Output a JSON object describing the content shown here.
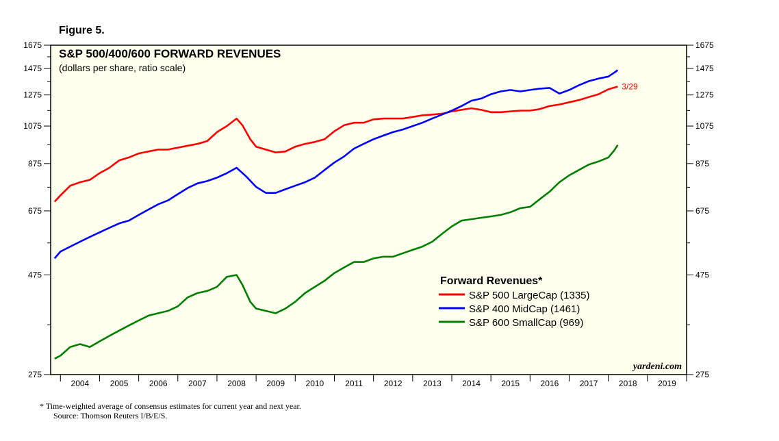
{
  "figure_label": "Figure 5.",
  "footnote": {
    "line1": "*   Time-weighted average of consensus estimates for current year and next year.",
    "line2": "Source: Thomson Reuters I/B/E/S."
  },
  "watermark": "yardeni.com",
  "colors": {
    "plot_background": "#ffffee",
    "large_cap": "#ff0000",
    "mid_cap": "#0000ff",
    "small_cap": "#008000"
  },
  "chart_data": {
    "type": "line",
    "title": "S&P 500/400/600 FORWARD REVENUES",
    "subtitle": "(dollars per share, ratio scale)",
    "y_scale": "log",
    "ylim": [
      275,
      1675
    ],
    "y_ticks": [
      275,
      475,
      675,
      875,
      1075,
      1275,
      1475,
      1675
    ],
    "y_tick_labels": [
      "275",
      "475",
      "675",
      "875",
      "1075",
      "1275",
      "1475",
      "1675"
    ],
    "xlim": [
      2003.75,
      2020.0
    ],
    "x_tick_labels": [
      "2004",
      "2005",
      "2006",
      "2007",
      "2008",
      "2009",
      "2010",
      "2011",
      "2012",
      "2013",
      "2014",
      "2015",
      "2016",
      "2017",
      "2018",
      "2019"
    ],
    "legend": {
      "title": "Forward Revenues*",
      "position": "lower-right"
    },
    "annotation": {
      "text": "3/29",
      "x": 2018.24,
      "y": 1335
    },
    "series": [
      {
        "name": "S&P 500 LargeCap (1335)",
        "color": "#ff0000",
        "points": [
          [
            2003.85,
            710
          ],
          [
            2004.0,
            735
          ],
          [
            2004.25,
            775
          ],
          [
            2004.5,
            790
          ],
          [
            2004.75,
            800
          ],
          [
            2005.0,
            830
          ],
          [
            2005.25,
            855
          ],
          [
            2005.5,
            890
          ],
          [
            2005.75,
            905
          ],
          [
            2006.0,
            925
          ],
          [
            2006.25,
            935
          ],
          [
            2006.5,
            945
          ],
          [
            2006.75,
            945
          ],
          [
            2007.0,
            955
          ],
          [
            2007.25,
            965
          ],
          [
            2007.5,
            975
          ],
          [
            2007.75,
            990
          ],
          [
            2008.0,
            1040
          ],
          [
            2008.25,
            1075
          ],
          [
            2008.5,
            1120
          ],
          [
            2008.65,
            1080
          ],
          [
            2008.85,
            1000
          ],
          [
            2009.0,
            960
          ],
          [
            2009.25,
            945
          ],
          [
            2009.5,
            930
          ],
          [
            2009.75,
            935
          ],
          [
            2010.0,
            960
          ],
          [
            2010.25,
            975
          ],
          [
            2010.5,
            985
          ],
          [
            2010.75,
            1000
          ],
          [
            2011.0,
            1045
          ],
          [
            2011.25,
            1080
          ],
          [
            2011.5,
            1095
          ],
          [
            2011.75,
            1095
          ],
          [
            2012.0,
            1115
          ],
          [
            2012.25,
            1120
          ],
          [
            2012.5,
            1120
          ],
          [
            2012.75,
            1120
          ],
          [
            2013.0,
            1130
          ],
          [
            2013.25,
            1140
          ],
          [
            2013.5,
            1145
          ],
          [
            2013.75,
            1150
          ],
          [
            2014.0,
            1165
          ],
          [
            2014.25,
            1175
          ],
          [
            2014.5,
            1185
          ],
          [
            2014.75,
            1175
          ],
          [
            2015.0,
            1160
          ],
          [
            2015.25,
            1160
          ],
          [
            2015.5,
            1165
          ],
          [
            2015.75,
            1170
          ],
          [
            2016.0,
            1170
          ],
          [
            2016.25,
            1180
          ],
          [
            2016.5,
            1200
          ],
          [
            2016.75,
            1210
          ],
          [
            2017.0,
            1225
          ],
          [
            2017.25,
            1240
          ],
          [
            2017.5,
            1260
          ],
          [
            2017.75,
            1280
          ],
          [
            2018.0,
            1315
          ],
          [
            2018.24,
            1335
          ]
        ]
      },
      {
        "name": "S&P 400 MidCap (1461)",
        "color": "#0000ff",
        "points": [
          [
            2003.85,
            520
          ],
          [
            2004.0,
            540
          ],
          [
            2004.25,
            555
          ],
          [
            2004.5,
            570
          ],
          [
            2004.75,
            585
          ],
          [
            2005.0,
            600
          ],
          [
            2005.25,
            615
          ],
          [
            2005.5,
            630
          ],
          [
            2005.75,
            640
          ],
          [
            2006.0,
            660
          ],
          [
            2006.25,
            680
          ],
          [
            2006.5,
            700
          ],
          [
            2006.75,
            715
          ],
          [
            2007.0,
            740
          ],
          [
            2007.25,
            765
          ],
          [
            2007.5,
            785
          ],
          [
            2007.75,
            795
          ],
          [
            2008.0,
            810
          ],
          [
            2008.25,
            830
          ],
          [
            2008.5,
            855
          ],
          [
            2008.75,
            815
          ],
          [
            2009.0,
            770
          ],
          [
            2009.25,
            745
          ],
          [
            2009.5,
            745
          ],
          [
            2009.75,
            760
          ],
          [
            2010.0,
            775
          ],
          [
            2010.25,
            790
          ],
          [
            2010.5,
            810
          ],
          [
            2010.75,
            845
          ],
          [
            2011.0,
            880
          ],
          [
            2011.25,
            910
          ],
          [
            2011.5,
            950
          ],
          [
            2011.75,
            975
          ],
          [
            2012.0,
            1000
          ],
          [
            2012.25,
            1020
          ],
          [
            2012.5,
            1040
          ],
          [
            2012.75,
            1055
          ],
          [
            2013.0,
            1075
          ],
          [
            2013.25,
            1095
          ],
          [
            2013.5,
            1120
          ],
          [
            2013.75,
            1145
          ],
          [
            2014.0,
            1170
          ],
          [
            2014.25,
            1200
          ],
          [
            2014.5,
            1235
          ],
          [
            2014.75,
            1250
          ],
          [
            2015.0,
            1280
          ],
          [
            2015.25,
            1300
          ],
          [
            2015.5,
            1310
          ],
          [
            2015.75,
            1300
          ],
          [
            2016.0,
            1310
          ],
          [
            2016.25,
            1320
          ],
          [
            2016.5,
            1325
          ],
          [
            2016.75,
            1285
          ],
          [
            2017.0,
            1310
          ],
          [
            2017.25,
            1345
          ],
          [
            2017.5,
            1375
          ],
          [
            2017.75,
            1395
          ],
          [
            2018.0,
            1410
          ],
          [
            2018.15,
            1440
          ],
          [
            2018.24,
            1461
          ]
        ]
      },
      {
        "name": "S&P 600 SmallCap (969)",
        "color": "#008000",
        "points": [
          [
            2003.85,
            300
          ],
          [
            2004.0,
            305
          ],
          [
            2004.25,
            320
          ],
          [
            2004.5,
            325
          ],
          [
            2004.75,
            320
          ],
          [
            2005.0,
            330
          ],
          [
            2005.25,
            340
          ],
          [
            2005.5,
            350
          ],
          [
            2005.75,
            360
          ],
          [
            2006.0,
            370
          ],
          [
            2006.25,
            380
          ],
          [
            2006.5,
            385
          ],
          [
            2006.75,
            390
          ],
          [
            2007.0,
            400
          ],
          [
            2007.25,
            420
          ],
          [
            2007.5,
            430
          ],
          [
            2007.75,
            435
          ],
          [
            2008.0,
            445
          ],
          [
            2008.25,
            470
          ],
          [
            2008.5,
            475
          ],
          [
            2008.65,
            450
          ],
          [
            2008.85,
            410
          ],
          [
            2009.0,
            395
          ],
          [
            2009.25,
            390
          ],
          [
            2009.5,
            385
          ],
          [
            2009.75,
            395
          ],
          [
            2010.0,
            410
          ],
          [
            2010.25,
            430
          ],
          [
            2010.5,
            445
          ],
          [
            2010.75,
            460
          ],
          [
            2011.0,
            480
          ],
          [
            2011.25,
            495
          ],
          [
            2011.5,
            510
          ],
          [
            2011.75,
            510
          ],
          [
            2012.0,
            520
          ],
          [
            2012.25,
            525
          ],
          [
            2012.5,
            525
          ],
          [
            2012.75,
            535
          ],
          [
            2013.0,
            545
          ],
          [
            2013.25,
            555
          ],
          [
            2013.5,
            570
          ],
          [
            2013.75,
            595
          ],
          [
            2014.0,
            620
          ],
          [
            2014.25,
            640
          ],
          [
            2014.5,
            645
          ],
          [
            2014.75,
            650
          ],
          [
            2015.0,
            655
          ],
          [
            2015.25,
            660
          ],
          [
            2015.5,
            670
          ],
          [
            2015.75,
            685
          ],
          [
            2016.0,
            690
          ],
          [
            2016.25,
            720
          ],
          [
            2016.5,
            750
          ],
          [
            2016.75,
            790
          ],
          [
            2017.0,
            820
          ],
          [
            2017.25,
            845
          ],
          [
            2017.5,
            870
          ],
          [
            2017.75,
            885
          ],
          [
            2018.0,
            905
          ],
          [
            2018.15,
            940
          ],
          [
            2018.24,
            969
          ]
        ]
      }
    ]
  }
}
